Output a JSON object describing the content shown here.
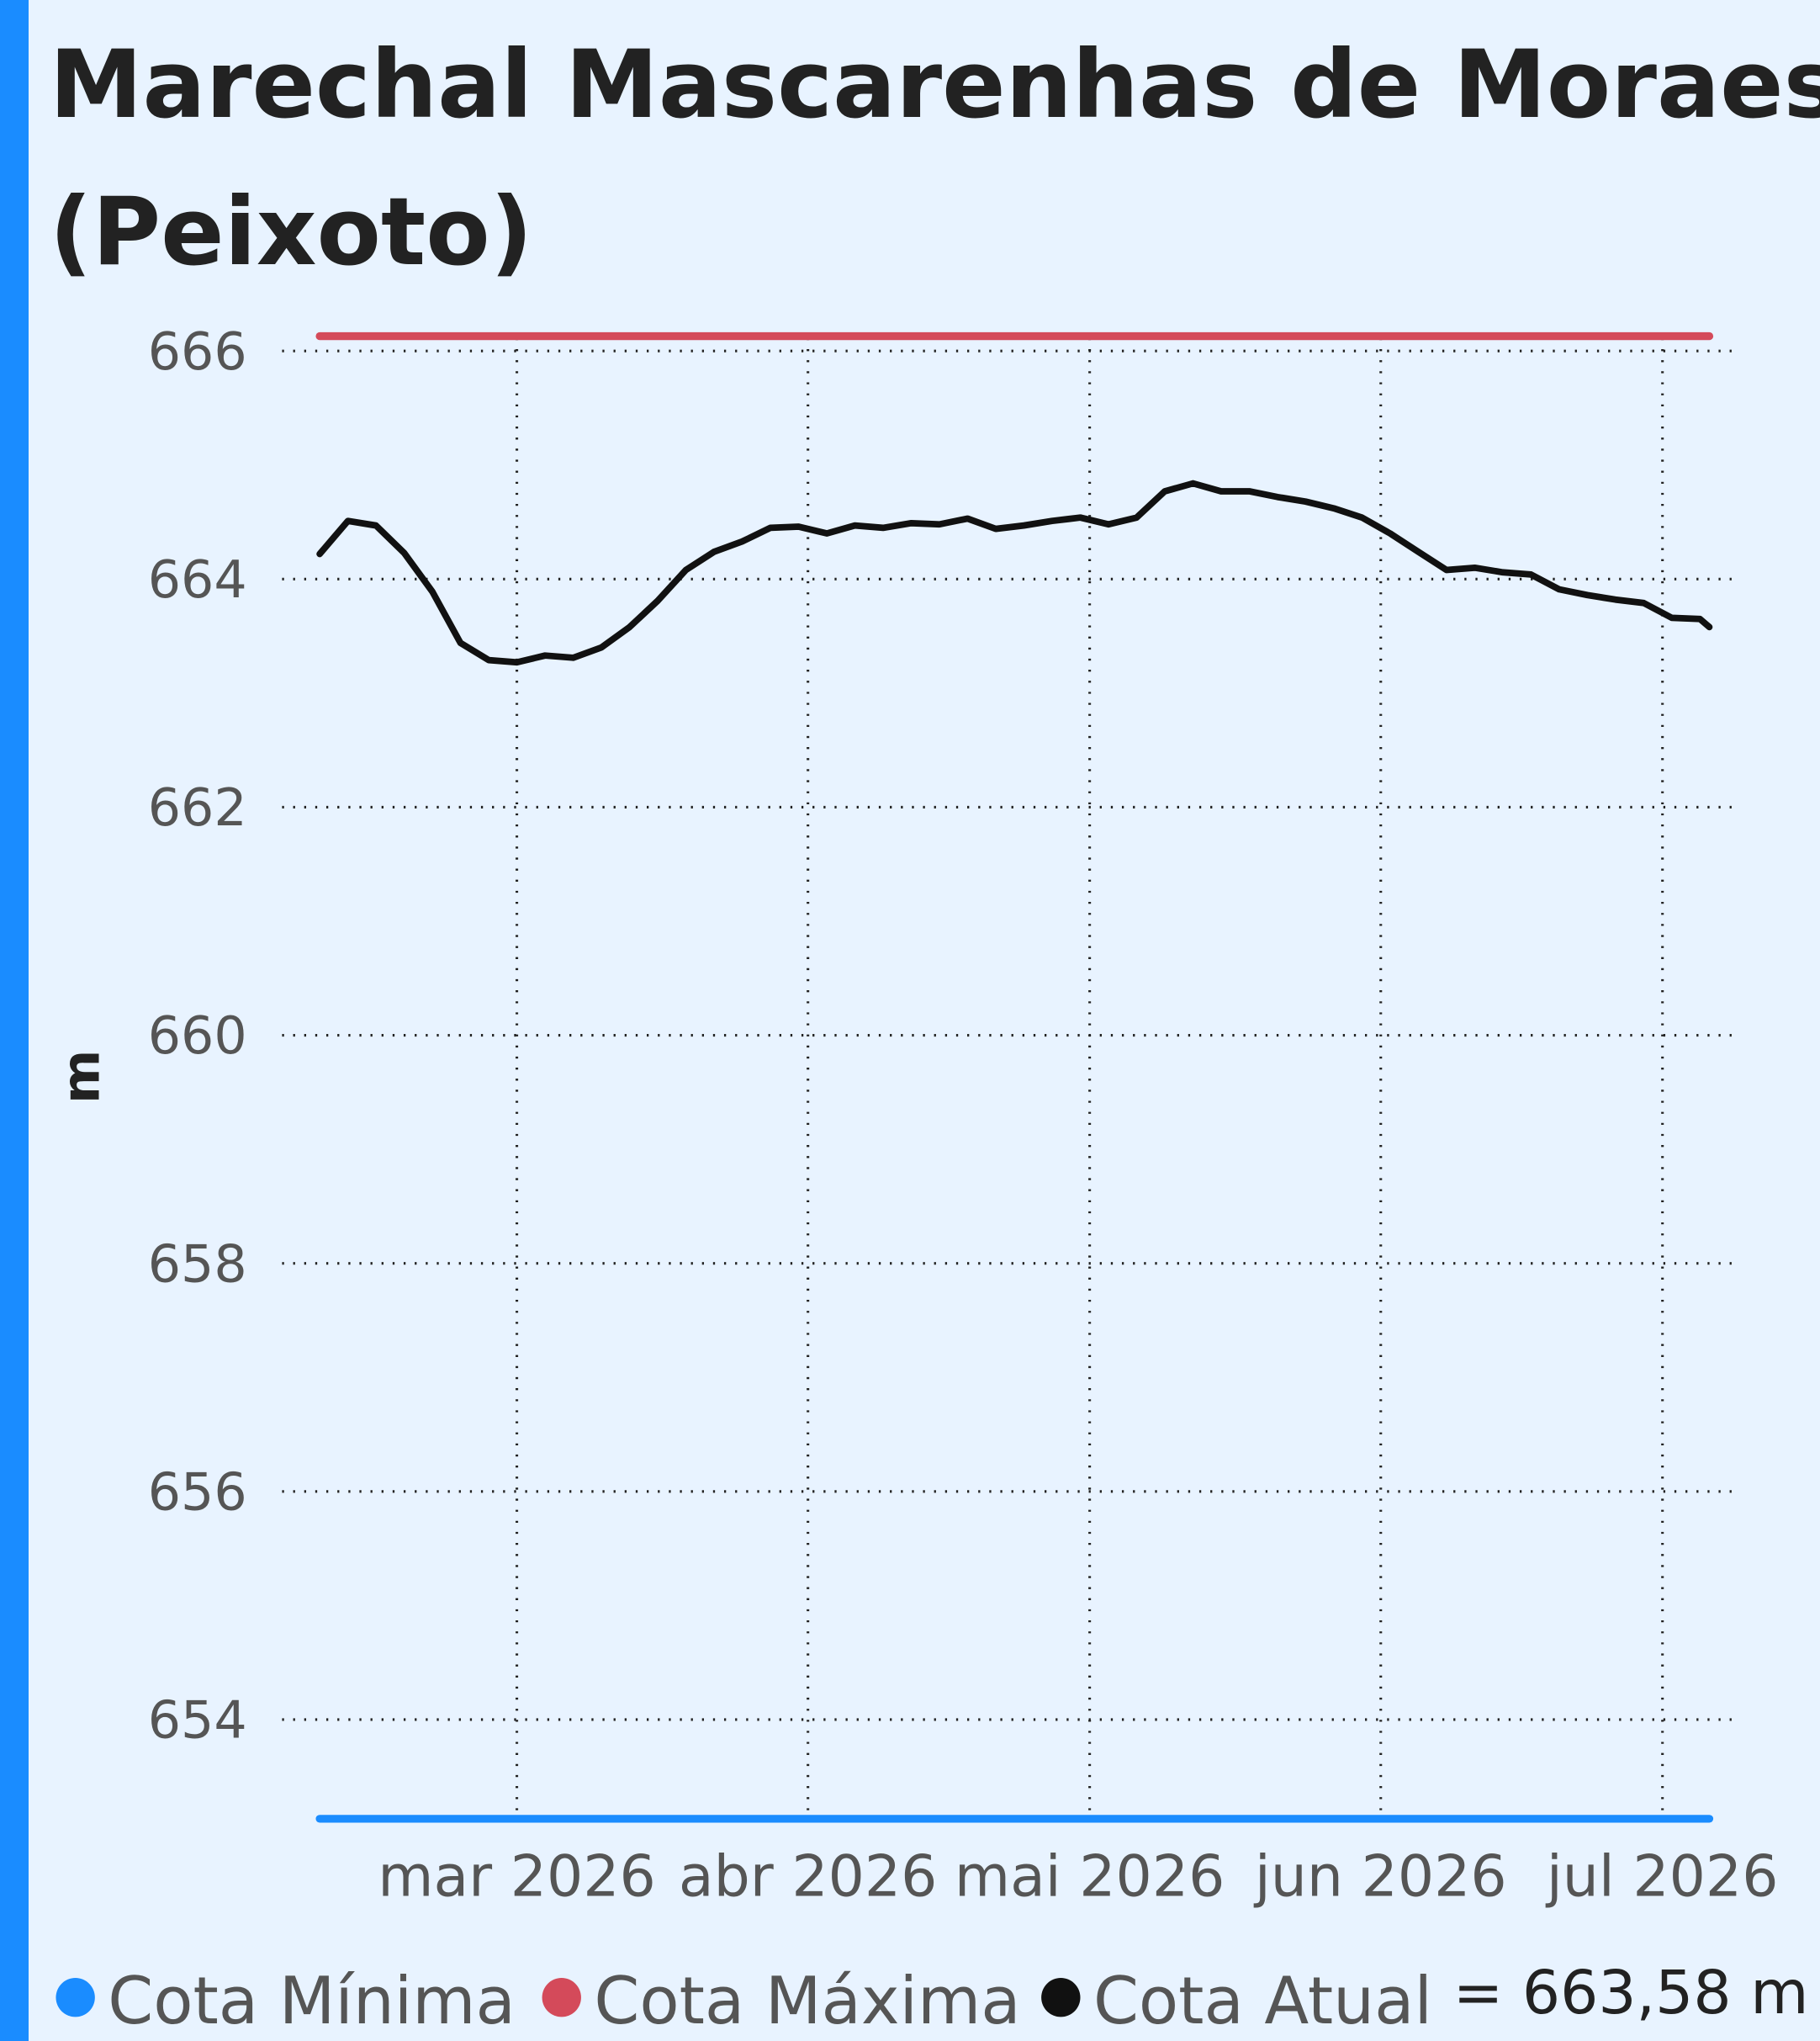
{
  "chart_data": {
    "type": "line",
    "title": [
      "Marechal Mascarenhas de Moraes",
      "(Peixoto)"
    ],
    "ylabel": "m",
    "x": [
      39,
      42,
      45,
      48,
      51,
      54,
      57,
      60,
      63,
      66,
      69,
      72,
      75,
      78,
      81,
      84,
      87,
      90,
      93,
      96,
      99,
      102,
      105,
      108,
      111,
      114,
      117,
      120,
      123,
      126,
      129,
      132,
      135,
      138,
      141,
      144,
      147,
      150,
      153,
      156,
      159,
      162,
      165,
      168,
      171,
      174,
      177,
      180,
      183,
      186,
      187
    ],
    "xlim": [
      35,
      189.5
    ],
    "xticks": [
      {
        "value": 60,
        "label": "mar 2026"
      },
      {
        "value": 91,
        "label": "abr 2026"
      },
      {
        "value": 121,
        "label": "mai 2026"
      },
      {
        "value": 152,
        "label": "jun 2026"
      },
      {
        "value": 182,
        "label": "jul 2026"
      }
    ],
    "ylim": [
      653.0,
      666.25
    ],
    "yticks": [
      654,
      656,
      658,
      660,
      662,
      664,
      666
    ],
    "grid": true,
    "series": [
      {
        "name": "Cota Mínima",
        "color": "#1a8cff",
        "values": [
          653.13,
          653.13,
          653.13,
          653.13,
          653.13,
          653.13,
          653.13,
          653.13,
          653.13,
          653.13,
          653.13,
          653.13,
          653.13,
          653.13,
          653.13,
          653.13,
          653.13,
          653.13,
          653.13,
          653.13,
          653.13,
          653.13,
          653.13,
          653.13,
          653.13,
          653.13,
          653.13,
          653.13,
          653.13,
          653.13,
          653.13,
          653.13,
          653.13,
          653.13,
          653.13,
          653.13,
          653.13,
          653.13,
          653.13,
          653.13,
          653.13,
          653.13,
          653.13,
          653.13,
          653.13,
          653.13,
          653.13,
          653.13,
          653.13,
          653.13,
          653.13
        ]
      },
      {
        "name": "Cota Máxima",
        "color": "#d44a5a",
        "values": [
          666.13,
          666.13,
          666.13,
          666.13,
          666.13,
          666.13,
          666.13,
          666.13,
          666.13,
          666.13,
          666.13,
          666.13,
          666.13,
          666.13,
          666.13,
          666.13,
          666.13,
          666.13,
          666.13,
          666.13,
          666.13,
          666.13,
          666.13,
          666.13,
          666.13,
          666.13,
          666.13,
          666.13,
          666.13,
          666.13,
          666.13,
          666.13,
          666.13,
          666.13,
          666.13,
          666.13,
          666.13,
          666.13,
          666.13,
          666.13,
          666.13,
          666.13,
          666.13,
          666.13,
          666.13,
          666.13,
          666.13,
          666.13,
          666.13,
          666.13,
          666.13
        ]
      },
      {
        "name": "Cota Atual",
        "color": "#111111",
        "current_label": "= 663,58 m",
        "values": [
          664.22,
          664.51,
          664.47,
          664.23,
          663.89,
          663.44,
          663.29,
          663.27,
          663.33,
          663.31,
          663.4,
          663.58,
          663.81,
          664.08,
          664.24,
          664.33,
          664.45,
          664.46,
          664.4,
          664.47,
          664.45,
          664.49,
          664.48,
          664.53,
          664.44,
          664.47,
          664.51,
          664.54,
          664.48,
          664.54,
          664.77,
          664.84,
          664.77,
          664.77,
          664.72,
          664.68,
          664.62,
          664.54,
          664.4,
          664.24,
          664.08,
          664.1,
          664.06,
          664.04,
          663.91,
          663.86,
          663.82,
          663.79,
          663.66,
          663.65,
          663.58
        ]
      }
    ]
  }
}
